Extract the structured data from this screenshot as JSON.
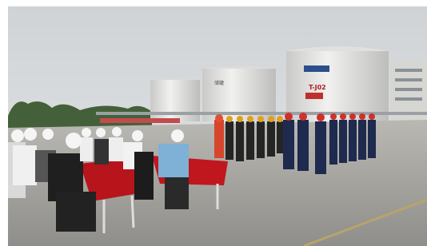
{
  "scene": {
    "tank_label": "T-J02"
  }
}
